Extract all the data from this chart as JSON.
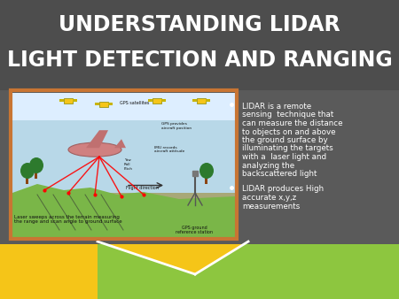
{
  "title_line1": "UNDERSTANDING LIDAR",
  "title_line2": "LIGHT DETECTION AND RANGING",
  "title_color": "#ffffff",
  "background_color": "#5a5a5a",
  "title_bg_color": "#4d4d4d",
  "bullet_color": "#ffffff",
  "bottom_yellow": "#f5c518",
  "bottom_green": "#8dc63f",
  "image_border_color": "#c87533",
  "figsize": [
    4.5,
    3.38
  ],
  "dpi": 100,
  "b1_lines": [
    "LIDAR is a remote",
    "sensing  technique that",
    "can measure the distance",
    "to objects on and above",
    "the ground surface by",
    "illuminating the targets",
    "with a  laser light and",
    "analyzing the",
    "backscattered light"
  ],
  "b2_lines": [
    "LIDAR produces High",
    "accurate x,y,z",
    "measurements"
  ]
}
